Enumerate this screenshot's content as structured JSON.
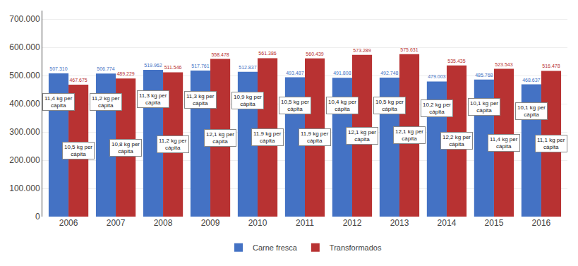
{
  "chart_data": {
    "type": "bar",
    "categories": [
      "2006",
      "2007",
      "2008",
      "2009",
      "2010",
      "2011",
      "2012",
      "2013",
      "2014",
      "2015",
      "2016"
    ],
    "series": [
      {
        "name": "Carne fresca",
        "color": "#4472C4",
        "values": [
          507310,
          506774,
          519962,
          517761,
          512837,
          493487,
          491808,
          492748,
          479003,
          485768,
          468637
        ],
        "value_labels": [
          "507.310",
          "506.774",
          "519.962",
          "517.761",
          "512.837",
          "493.487",
          "491.808",
          "492.748",
          "479.003",
          "485.768",
          "468.637"
        ],
        "annotations": [
          "11,4 kg per\ncápita",
          "11,2 kg per\ncápita",
          "11,3 kg per\ncápita",
          "11,3 kg per\ncápita",
          "10,9 kg per\ncápita",
          "10,5 kg per\ncápita",
          "10,4 kg per\ncápita",
          "10,5 kg per\ncápita",
          "10,2 kg per\ncápita",
          "10,1 kg per\ncápita",
          "10,1 kg per\ncápita"
        ]
      },
      {
        "name": "Transformados",
        "color": "#B83232",
        "values": [
          467675,
          489229,
          511546,
          558478,
          561386,
          560439,
          573289,
          575631,
          535435,
          523543,
          516478
        ],
        "value_labels": [
          "467.675",
          "489.229",
          "511.546",
          "558.478",
          "561.386",
          "560.439",
          "573.289",
          "575.631",
          "535.435",
          "523.543",
          "516.478"
        ],
        "annotations": [
          "10,5 kg per\ncápita",
          "10,8 kg per\ncápita",
          "11,2 kg per\ncápita",
          "12,1 kg per\ncápita",
          "11,9 kg per\ncápita",
          "11,9 kg per\ncápita",
          "12,1 kg per\ncápita",
          "12,1 kg per\ncápita",
          "12,2 kg per\ncápita",
          "11,4 kg per\ncápita",
          "11,1 kg per\ncápita"
        ]
      }
    ],
    "ylim": [
      0,
      730000
    ],
    "yticks": [
      0,
      {
        "value": 100000,
        "label": "100.000"
      },
      {
        "value": 200000,
        "label": "200.000"
      },
      {
        "value": 300000,
        "label": "300.000"
      },
      {
        "value": 400000,
        "label": "400.000"
      },
      {
        "value": 500000,
        "label": "500.000"
      },
      {
        "value": 600000,
        "label": "600.000"
      },
      {
        "value": 700000,
        "label": "700.000"
      }
    ],
    "grid": true,
    "legend": "bottom",
    "data_labels": true
  }
}
